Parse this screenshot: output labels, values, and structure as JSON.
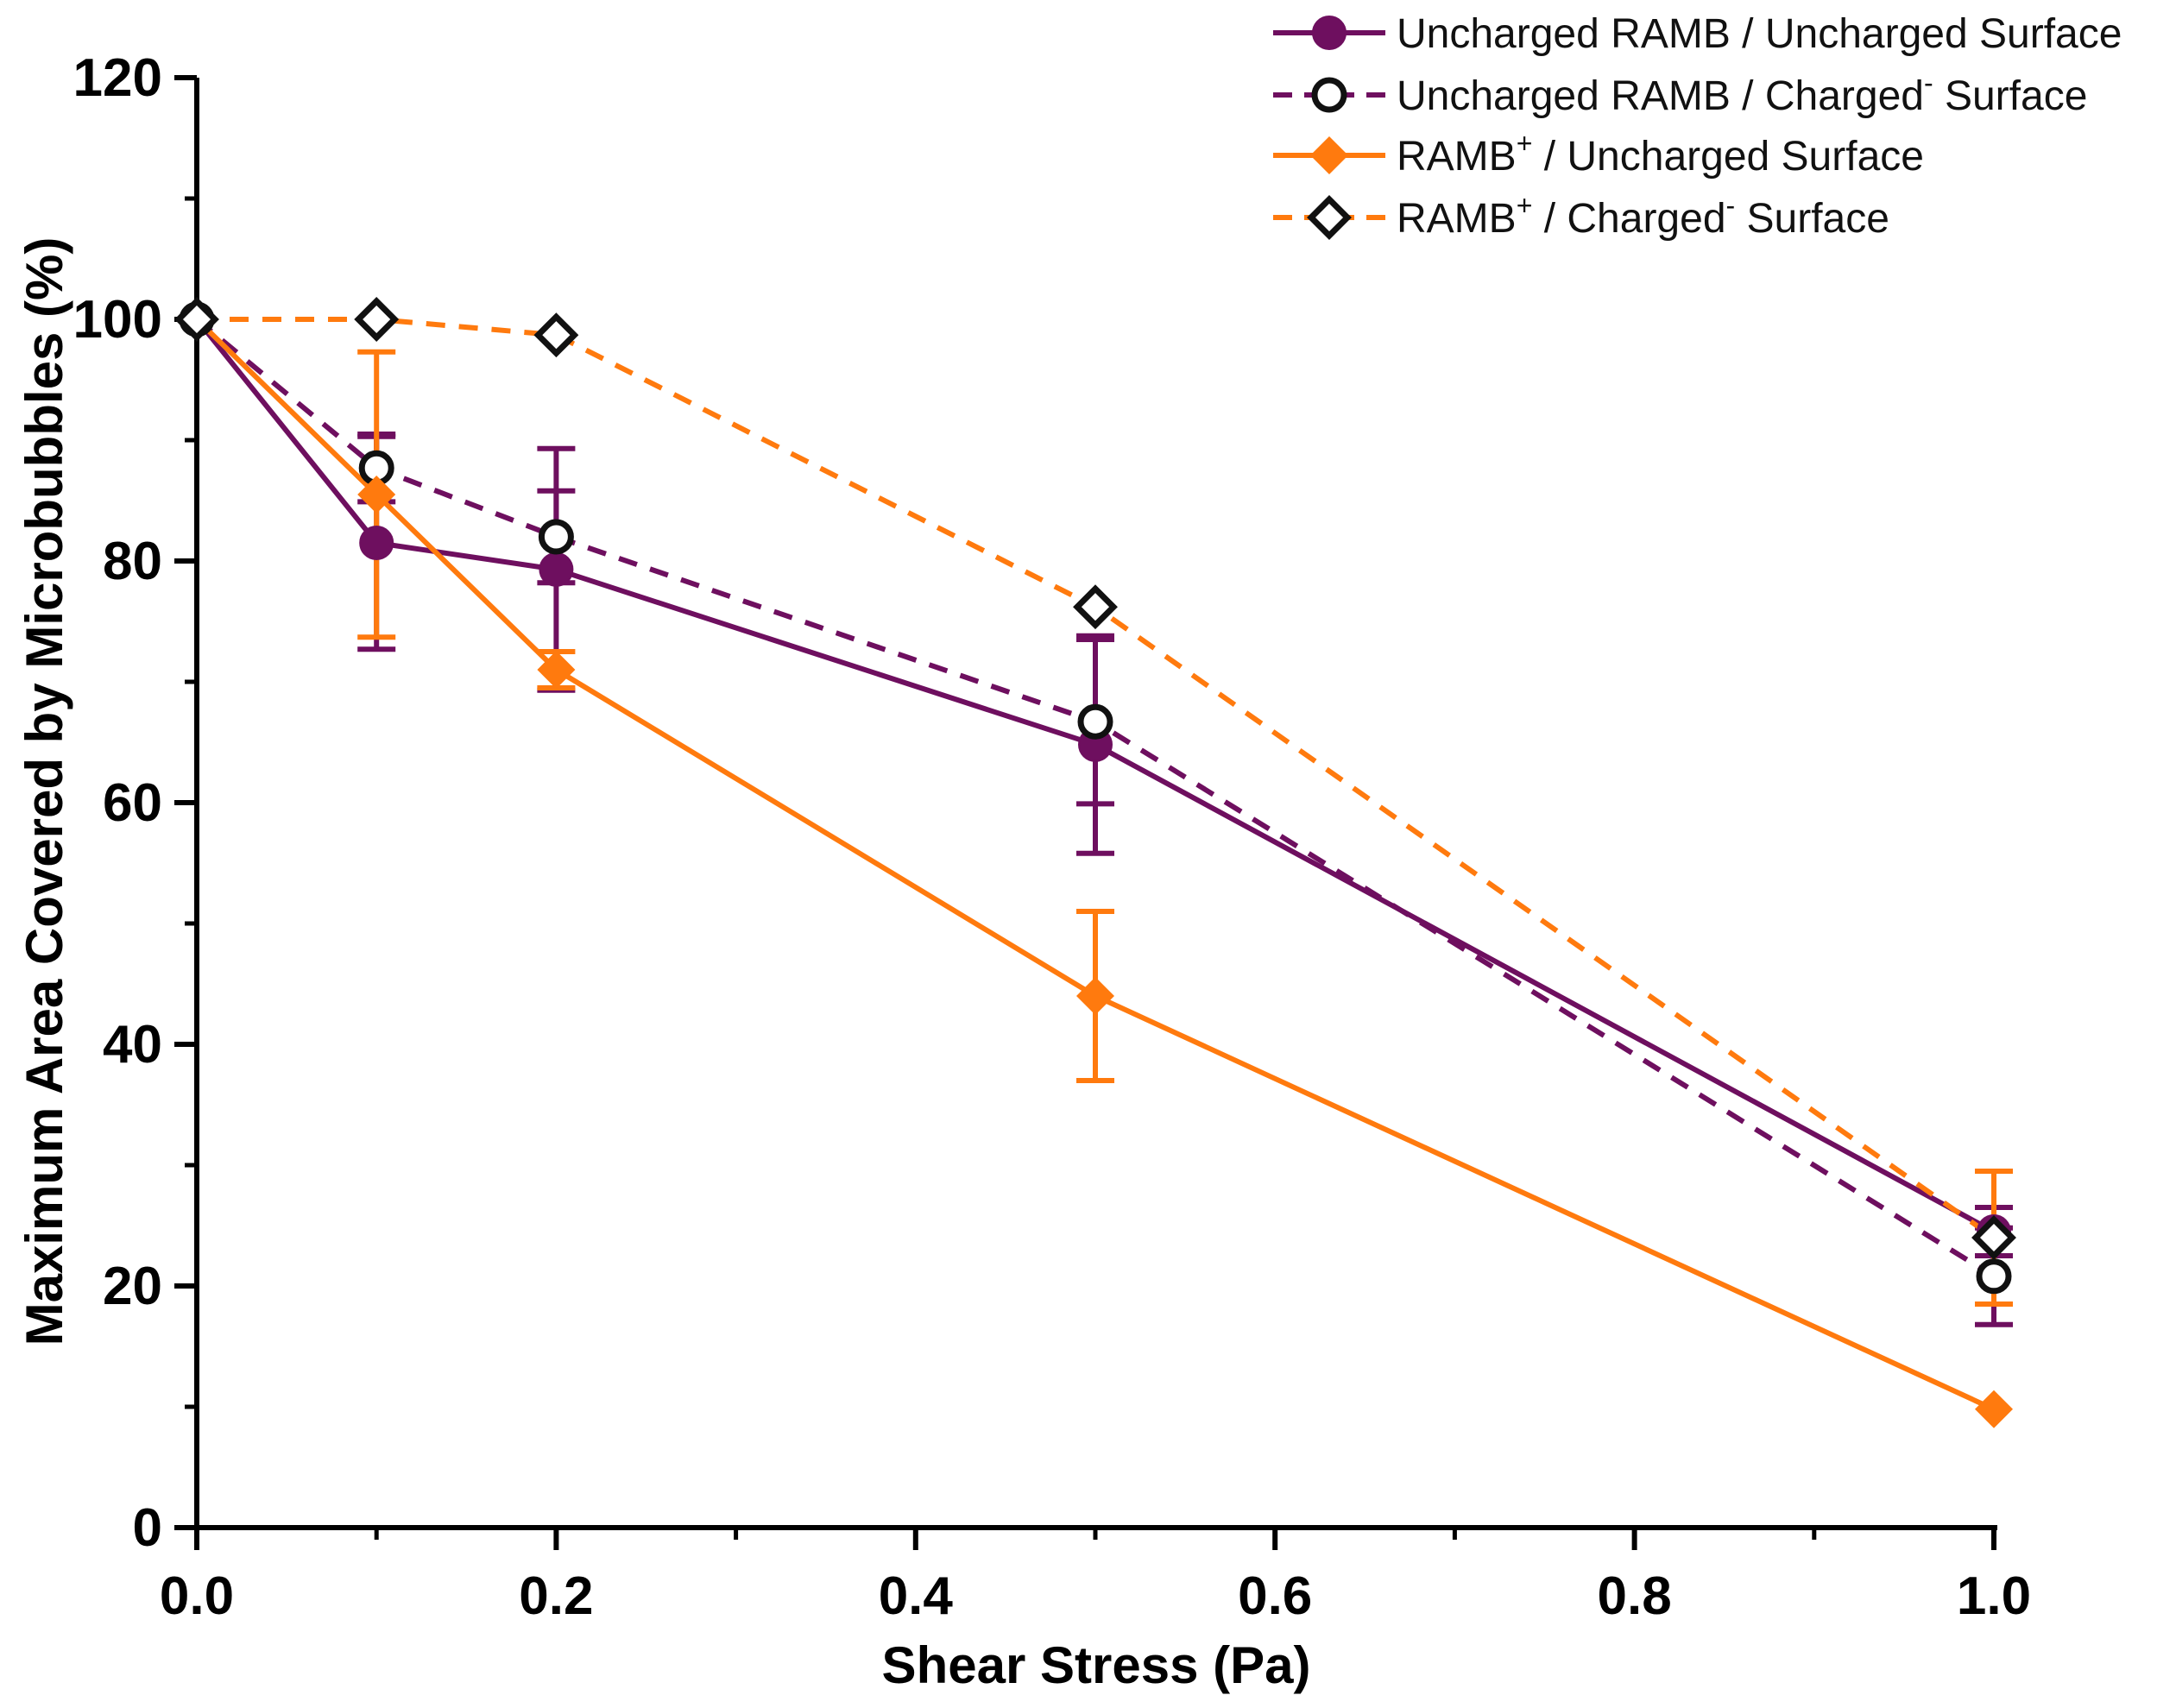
{
  "chart_data": {
    "type": "line",
    "title": "",
    "xlabel": "Shear Stress (Pa)",
    "ylabel": "Maximum Area Covered by Microbubbles (%)",
    "xlim": [
      0,
      1.0
    ],
    "ylim": [
      0,
      120
    ],
    "xticks": [
      "0.0",
      "0.2",
      "0.4",
      "0.6",
      "0.8",
      "1.0"
    ],
    "xtick_values": [
      0,
      0.2,
      0.4,
      0.6,
      0.8,
      1.0
    ],
    "xminor_values": [
      0.1,
      0.3,
      0.5,
      0.7,
      0.9
    ],
    "yticks": [
      "0",
      "20",
      "40",
      "60",
      "80",
      "100",
      "120"
    ],
    "ytick_values": [
      0,
      20,
      40,
      60,
      80,
      100,
      120
    ],
    "legend_position": "top-right",
    "colors": {
      "purple": "#6e0f5f",
      "orange": "#ff7a0e",
      "marker_outline": "#111111"
    },
    "series": [
      {
        "name": "Uncharged RAMB / Uncharged Surface",
        "legend_main": "Uncharged RAMB / Uncharged Surface",
        "legend_sup": "",
        "legend_tail": "",
        "color": "#6e0f5f",
        "dash": "solid",
        "marker": "filled-circle",
        "x": [
          0,
          0.1,
          0.2,
          0.5,
          1.0
        ],
        "y": [
          100,
          81.5,
          79.3,
          64.8,
          24.5
        ],
        "err": [
          0,
          8.8,
          10.0,
          9.0,
          2.0
        ]
      },
      {
        "name": "Uncharged RAMB / Charged- Surface",
        "legend_main": "Uncharged RAMB / Charged",
        "legend_sup": "-",
        "legend_tail": " Surface",
        "color": "#6e0f5f",
        "dash": "dashed",
        "marker": "open-circle",
        "x": [
          0,
          0.1,
          0.2,
          0.5,
          1.0
        ],
        "y": [
          100,
          87.7,
          82.0,
          66.7,
          20.8
        ],
        "err": [
          0,
          2.8,
          3.8,
          6.8,
          4.0
        ]
      },
      {
        "name": "RAMB+ / Uncharged Surface",
        "legend_main": "RAMB",
        "legend_sup": "+",
        "legend_tail": " / Uncharged Surface",
        "color": "#ff7a0e",
        "dash": "solid",
        "marker": "filled-diamond",
        "x": [
          0,
          0.1,
          0.2,
          0.5,
          1.0
        ],
        "y": [
          100,
          85.5,
          71.0,
          44.0,
          9.8
        ],
        "err": [
          0,
          11.8,
          1.5,
          7.0,
          0
        ]
      },
      {
        "name": "RAMB+ / Charged- Surface",
        "legend_main": "RAMB",
        "legend_sup": "+",
        "legend_tail": " / Charged",
        "legend_sup2": "-",
        "legend_tail2": " Surface",
        "color": "#ff7a0e",
        "dash": "dashed",
        "marker": "open-diamond",
        "x": [
          0,
          0.1,
          0.2,
          0.5,
          1.0
        ],
        "y": [
          100,
          100,
          98.7,
          76.2,
          24.0
        ],
        "err": [
          0,
          0,
          0,
          0,
          5.5
        ]
      }
    ]
  }
}
